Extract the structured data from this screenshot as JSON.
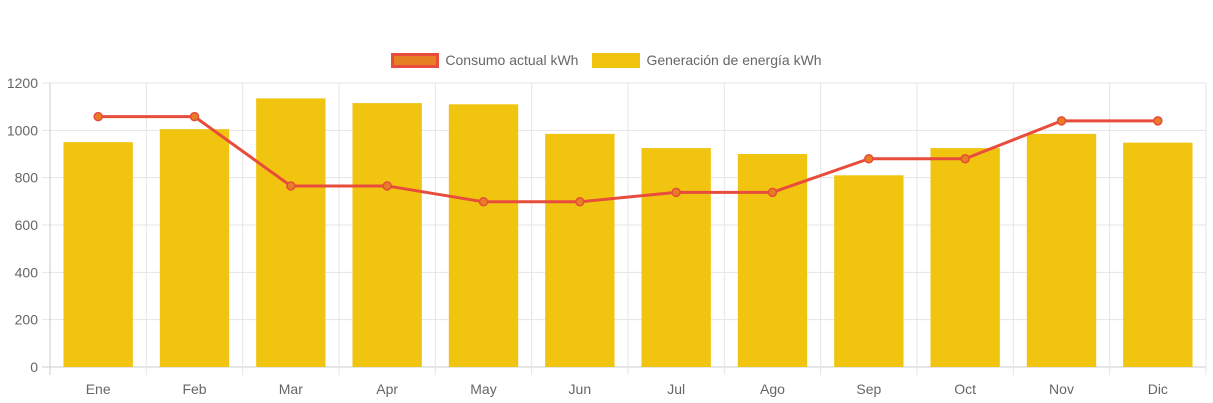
{
  "chart_data": {
    "type": "bar",
    "categories": [
      "Ene",
      "Feb",
      "Mar",
      "Apr",
      "May",
      "Jun",
      "Jul",
      "Ago",
      "Sep",
      "Oct",
      "Nov",
      "Dic"
    ],
    "series": [
      {
        "name": "Generación de energía kWh",
        "type": "bar",
        "color": "#f1c40f",
        "values": [
          950,
          1005,
          1135,
          1115,
          1110,
          985,
          925,
          900,
          810,
          925,
          985,
          948
        ]
      },
      {
        "name": "Consumo actual kWh",
        "type": "line",
        "color": "#e74c3c",
        "point_color": "#e67e22",
        "values": [
          1058,
          1058,
          765,
          765,
          698,
          698,
          738,
          738,
          880,
          880,
          1040,
          1040
        ]
      }
    ],
    "ylim": [
      0,
      1200
    ],
    "yticks": [
      0,
      200,
      400,
      600,
      800,
      1000,
      1200
    ],
    "grid": true,
    "legend": "top-center"
  }
}
